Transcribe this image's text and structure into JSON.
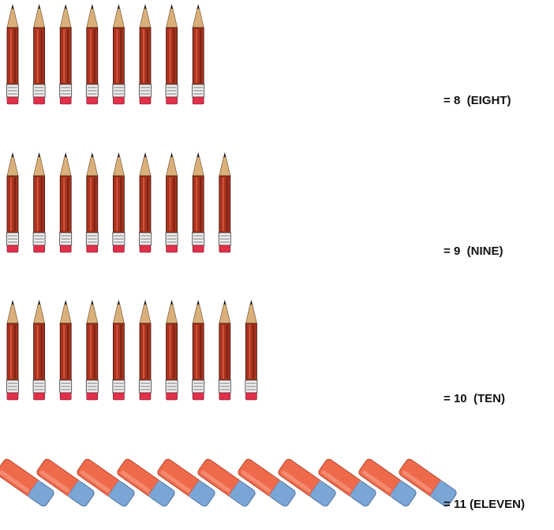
{
  "rows": [
    {
      "item": "pencil",
      "equals": "=",
      "number": 8,
      "word": "(EIGHT)"
    },
    {
      "item": "pencil",
      "equals": "=",
      "number": 9,
      "word": "(NINE)"
    },
    {
      "item": "pencil",
      "equals": "=",
      "number": 10,
      "word": "(TEN)"
    },
    {
      "item": "eraser",
      "equals": "=",
      "number": 11,
      "word": "(ELEVEN)"
    }
  ]
}
